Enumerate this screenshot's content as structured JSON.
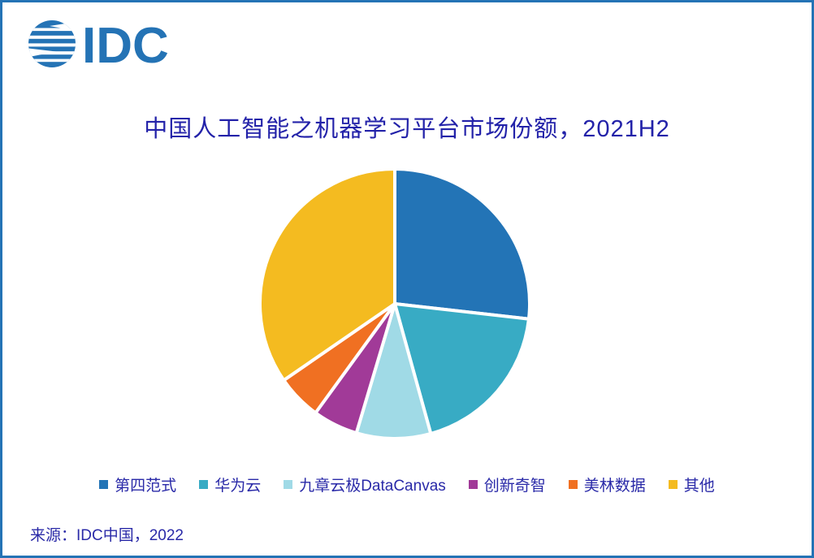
{
  "page": {
    "background": "#ffffff",
    "border_color": "#2473B5"
  },
  "logo": {
    "text": "IDC",
    "color": "#2473B5"
  },
  "chart_data": {
    "type": "pie",
    "title": "中国人工智能之机器学习平台市场份额，2021H2",
    "categories": [
      "第四范式",
      "华为云",
      "九章云极DataCanvas",
      "创新奇智",
      "美林数据",
      "其他"
    ],
    "values": [
      26.8,
      18.9,
      8.9,
      5.4,
      5.4,
      34.6
    ],
    "values_unit": "%",
    "values_note": "no data labels shown in chart; values estimated from slice angles",
    "colors": [
      "#2374B6",
      "#38ABC4",
      "#A0DAE6",
      "#A13A98",
      "#F07022",
      "#F4BB20"
    ],
    "start_angle_deg_from_12_oclock": 0,
    "direction": "clockwise",
    "slice_gap_color": "#ffffff",
    "legend_position": "bottom",
    "legend_text_color": "#2A2AA8",
    "title_color": "#2322A9"
  },
  "source": {
    "text": "来源：IDC中国，2022"
  }
}
